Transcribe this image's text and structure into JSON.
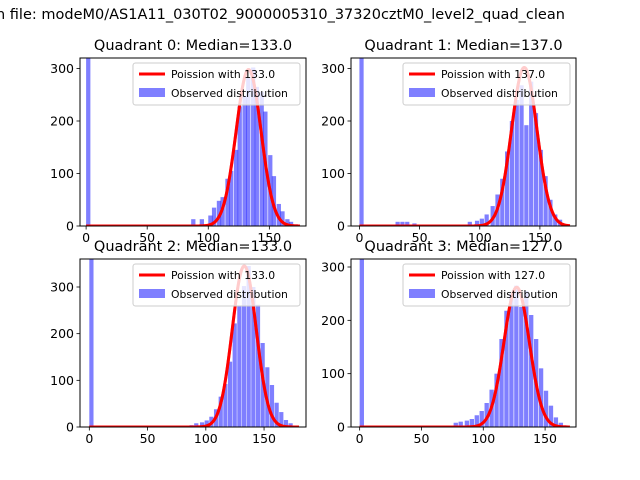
{
  "figure": {
    "suptitle": "n file: modeM0/AS1A11_030T02_9000005310_37320cztM0_level2_quad_clean",
    "hist_color": "#0000ff",
    "fit_color": "#ff0000"
  },
  "chart_data": [
    {
      "type": "bar",
      "title": "Quadrant 0: Median=133.0",
      "legend": {
        "position": "top-right",
        "fit_label": "Poission with 133.0",
        "hist_label": "Observed distribution"
      },
      "mean": 133.0,
      "xlim": [
        -5,
        180
      ],
      "ylim": [
        0,
        320
      ],
      "xticks": [
        0,
        50,
        100,
        150
      ],
      "yticks": [
        0,
        100,
        200,
        300
      ],
      "bin_width": 3.5,
      "bins": [
        [
          0,
          320
        ],
        [
          86,
          13
        ],
        [
          93,
          13
        ],
        [
          100,
          20
        ],
        [
          103,
          35
        ],
        [
          107,
          48
        ],
        [
          110,
          55
        ],
        [
          114,
          90
        ],
        [
          117,
          105
        ],
        [
          121,
          145
        ],
        [
          124,
          228
        ],
        [
          128,
          248
        ],
        [
          131,
          282
        ],
        [
          135,
          302
        ],
        [
          138,
          265
        ],
        [
          142,
          255
        ],
        [
          145,
          218
        ],
        [
          149,
          135
        ],
        [
          152,
          95
        ],
        [
          156,
          42
        ],
        [
          159,
          28
        ],
        [
          163,
          13
        ],
        [
          166,
          8
        ],
        [
          170,
          3
        ]
      ],
      "fit_peak": 298,
      "fit_sigma": 10.2,
      "fit_range": [
        0,
        175
      ]
    },
    {
      "type": "bar",
      "title": "Quadrant 1: Median=137.0",
      "legend": {
        "position": "top-right",
        "fit_label": "Poission with 137.0",
        "hist_label": "Observed distribution"
      },
      "mean": 137.0,
      "xlim": [
        -7,
        180
      ],
      "ylim": [
        0,
        320
      ],
      "xticks": [
        0,
        50,
        100,
        150
      ],
      "yticks": [
        0,
        100,
        200,
        300
      ],
      "bin_width": 3.5,
      "bins": [
        [
          0,
          320
        ],
        [
          30,
          8
        ],
        [
          34,
          8
        ],
        [
          38,
          8
        ],
        [
          44,
          5
        ],
        [
          90,
          8
        ],
        [
          96,
          10
        ],
        [
          100,
          14
        ],
        [
          104,
          22
        ],
        [
          109,
          38
        ],
        [
          113,
          60
        ],
        [
          117,
          90
        ],
        [
          121,
          142
        ],
        [
          125,
          200
        ],
        [
          129,
          240
        ],
        [
          133,
          268
        ],
        [
          137,
          192
        ],
        [
          141,
          275
        ],
        [
          145,
          215
        ],
        [
          149,
          145
        ],
        [
          153,
          95
        ],
        [
          157,
          50
        ],
        [
          161,
          22
        ],
        [
          165,
          12
        ],
        [
          169,
          3
        ]
      ],
      "fit_peak": 302,
      "fit_sigma": 10.6,
      "fit_range": [
        0,
        175
      ]
    },
    {
      "type": "bar",
      "title": "Quadrant 2: Median=133.0",
      "legend": {
        "position": "top-right",
        "fit_label": "Poission with 133.0",
        "hist_label": "Observed distribution"
      },
      "mean": 133.0,
      "xlim": [
        -8,
        186
      ],
      "ylim": [
        0,
        360
      ],
      "xticks": [
        0,
        50,
        100,
        150
      ],
      "yticks": [
        0,
        100,
        200,
        300
      ],
      "bin_width": 3.6,
      "bins": [
        [
          0,
          360
        ],
        [
          86,
          4
        ],
        [
          90,
          8
        ],
        [
          95,
          10
        ],
        [
          99,
          14
        ],
        [
          103,
          22
        ],
        [
          107,
          38
        ],
        [
          111,
          65
        ],
        [
          115,
          92
        ],
        [
          119,
          140
        ],
        [
          123,
          222
        ],
        [
          127,
          260
        ],
        [
          131,
          302
        ],
        [
          135,
          345
        ],
        [
          139,
          300
        ],
        [
          143,
          262
        ],
        [
          147,
          180
        ],
        [
          151,
          128
        ],
        [
          155,
          90
        ],
        [
          159,
          52
        ],
        [
          163,
          32
        ],
        [
          167,
          15
        ],
        [
          171,
          8
        ],
        [
          175,
          3
        ]
      ],
      "fit_peak": 345,
      "fit_sigma": 10.3,
      "fit_range": [
        0,
        180
      ]
    },
    {
      "type": "bar",
      "title": "Quadrant 3: Median=127.0",
      "legend": {
        "position": "top-right",
        "fit_label": "Poission with 127.0",
        "hist_label": "Observed distribution"
      },
      "mean": 127.0,
      "xlim": [
        -7,
        175
      ],
      "ylim": [
        0,
        315
      ],
      "xticks": [
        0,
        50,
        100,
        150
      ],
      "yticks": [
        0,
        100,
        200,
        300
      ],
      "bin_width": 3.5,
      "bins": [
        [
          0,
          315
        ],
        [
          76,
          8
        ],
        [
          80,
          10
        ],
        [
          85,
          12
        ],
        [
          89,
          15
        ],
        [
          93,
          22
        ],
        [
          97,
          30
        ],
        [
          101,
          45
        ],
        [
          105,
          70
        ],
        [
          109,
          100
        ],
        [
          113,
          165
        ],
        [
          117,
          218
        ],
        [
          121,
          250
        ],
        [
          125,
          265
        ],
        [
          129,
          225
        ],
        [
          133,
          255
        ],
        [
          137,
          210
        ],
        [
          141,
          165
        ],
        [
          145,
          110
        ],
        [
          149,
          68
        ],
        [
          153,
          40
        ],
        [
          157,
          18
        ],
        [
          161,
          8
        ],
        [
          165,
          3
        ]
      ],
      "fit_peak": 262,
      "fit_sigma": 10.3,
      "fit_range": [
        0,
        170
      ]
    }
  ]
}
